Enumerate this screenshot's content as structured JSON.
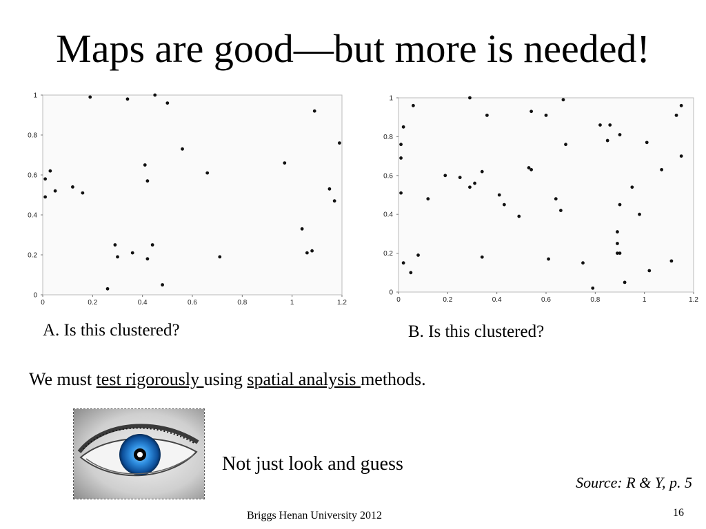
{
  "slide": {
    "title": "Maps are good—but more is needed!",
    "sentence": {
      "pre": "We must ",
      "link1": "test rigorously ",
      "mid": "using ",
      "link2": "spatial analysis ",
      "post": "methods."
    },
    "note": "Not just look and guess",
    "source": "Source: R & Y, p. 5",
    "footer": "Briggs Henan University 2012",
    "page_number": "16",
    "image_icon": "eye-icon"
  },
  "chart_data": [
    {
      "type": "scatter",
      "caption": "A. Is this clustered?",
      "xlim": [
        0,
        1.2
      ],
      "ylim": [
        0,
        1
      ],
      "xticks": [
        "0",
        "0.2",
        "0.4",
        "0.6",
        "0.8",
        "1",
        "1.2"
      ],
      "yticks": [
        "0",
        "0.2",
        "0.4",
        "0.6",
        "0.8",
        "1"
      ],
      "grid": false,
      "points": [
        [
          0.01,
          0.58
        ],
        [
          0.01,
          0.49
        ],
        [
          0.03,
          0.62
        ],
        [
          0.05,
          0.52
        ],
        [
          0.12,
          0.54
        ],
        [
          0.16,
          0.51
        ],
        [
          0.19,
          0.99
        ],
        [
          0.29,
          0.25
        ],
        [
          0.3,
          0.19
        ],
        [
          0.34,
          0.98
        ],
        [
          0.36,
          0.21
        ],
        [
          0.41,
          0.65
        ],
        [
          0.42,
          0.18
        ],
        [
          0.42,
          0.57
        ],
        [
          0.44,
          0.25
        ],
        [
          0.45,
          1.0
        ],
        [
          0.48,
          0.05
        ],
        [
          0.5,
          0.96
        ],
        [
          0.56,
          0.73
        ],
        [
          0.66,
          0.61
        ],
        [
          0.71,
          0.19
        ],
        [
          0.97,
          0.66
        ],
        [
          1.04,
          0.33
        ],
        [
          1.06,
          0.21
        ],
        [
          1.08,
          0.22
        ],
        [
          1.09,
          0.92
        ],
        [
          1.15,
          0.53
        ],
        [
          1.17,
          0.47
        ],
        [
          1.19,
          0.76
        ],
        [
          0.26,
          0.03
        ]
      ]
    },
    {
      "type": "scatter",
      "caption": "B.  Is this clustered?",
      "xlim": [
        0,
        1.2
      ],
      "ylim": [
        0,
        1
      ],
      "xticks": [
        "0",
        "0.2",
        "0.4",
        "0.6",
        "0.8",
        "1",
        "1.2"
      ],
      "yticks": [
        "0",
        "0.2",
        "0.4",
        "0.6",
        "0.8",
        "1"
      ],
      "grid": false,
      "points": [
        [
          0.01,
          0.76
        ],
        [
          0.01,
          0.69
        ],
        [
          0.01,
          0.51
        ],
        [
          0.02,
          0.85
        ],
        [
          0.02,
          0.15
        ],
        [
          0.05,
          0.1
        ],
        [
          0.06,
          0.96
        ],
        [
          0.08,
          0.19
        ],
        [
          0.12,
          0.48
        ],
        [
          0.19,
          0.6
        ],
        [
          0.25,
          0.59
        ],
        [
          0.29,
          1.0
        ],
        [
          0.29,
          0.54
        ],
        [
          0.31,
          0.56
        ],
        [
          0.34,
          0.62
        ],
        [
          0.34,
          0.18
        ],
        [
          0.36,
          0.91
        ],
        [
          0.41,
          0.5
        ],
        [
          0.43,
          0.45
        ],
        [
          0.49,
          0.39
        ],
        [
          0.53,
          0.64
        ],
        [
          0.54,
          0.63
        ],
        [
          0.54,
          0.93
        ],
        [
          0.6,
          0.91
        ],
        [
          0.61,
          0.17
        ],
        [
          0.64,
          0.48
        ],
        [
          0.66,
          0.42
        ],
        [
          0.67,
          0.99
        ],
        [
          0.68,
          0.76
        ],
        [
          0.75,
          0.15
        ],
        [
          0.79,
          0.02
        ],
        [
          0.82,
          0.86
        ],
        [
          0.85,
          0.78
        ],
        [
          0.86,
          0.86
        ],
        [
          0.89,
          0.31
        ],
        [
          0.89,
          0.25
        ],
        [
          0.89,
          0.2
        ],
        [
          0.9,
          0.81
        ],
        [
          0.9,
          0.45
        ],
        [
          0.9,
          0.2
        ],
        [
          0.92,
          0.05
        ],
        [
          0.95,
          0.54
        ],
        [
          0.98,
          0.4
        ],
        [
          1.01,
          0.77
        ],
        [
          1.02,
          0.11
        ],
        [
          1.07,
          0.63
        ],
        [
          1.11,
          0.16
        ],
        [
          1.13,
          0.91
        ],
        [
          1.15,
          0.96
        ],
        [
          1.15,
          0.7
        ]
      ]
    }
  ]
}
